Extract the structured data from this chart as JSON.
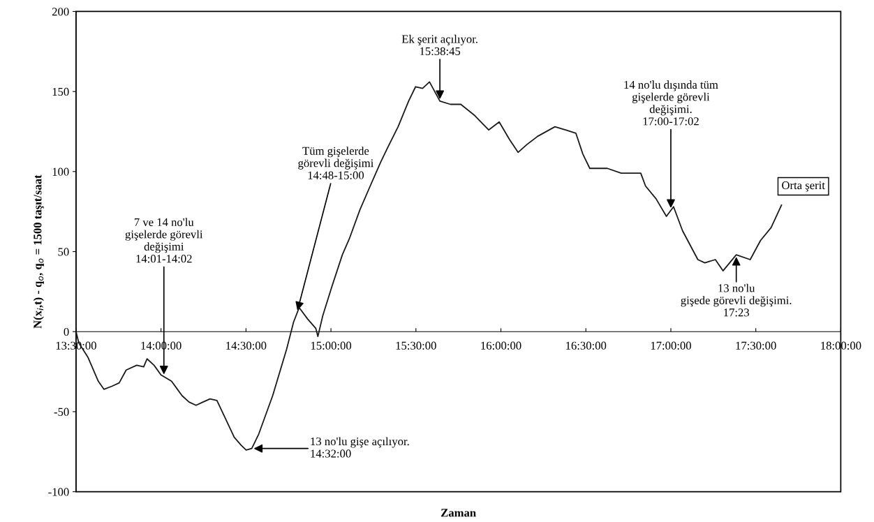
{
  "chart_data": {
    "type": "line",
    "xlabel": "Zaman",
    "ylabel": "N(x$_{i}$,t) - q$_{o}$, q$_{o}$ = 1500 taşıt/saat",
    "xlim": [
      13.5,
      18
    ],
    "ylim": [
      -100,
      200
    ],
    "xticks": [
      {
        "value": 13.5,
        "label": "13:30:00"
      },
      {
        "value": 14,
        "label": "14:00:00"
      },
      {
        "value": 14.5,
        "label": "14:30:00"
      },
      {
        "value": 15,
        "label": "15:00:00"
      },
      {
        "value": 15.5,
        "label": "15:30:00"
      },
      {
        "value": 16,
        "label": "16:00:00"
      },
      {
        "value": 16.5,
        "label": "16:30:00"
      },
      {
        "value": 17,
        "label": "17:00:00"
      },
      {
        "value": 17.5,
        "label": "17:30:00"
      },
      {
        "value": 18,
        "label": "18:00:00"
      }
    ],
    "yticks": [
      -100,
      -50,
      0,
      50,
      100,
      150,
      200
    ],
    "grid": false,
    "legend": false,
    "series": [
      {
        "name": "Orta şerit",
        "color": "#1a1a1a",
        "x": [
          13.5,
          13.516,
          13.57,
          13.631,
          13.664,
          13.713,
          13.754,
          13.795,
          13.857,
          13.898,
          13.918,
          13.959,
          14.0,
          14.062,
          14.124,
          14.165,
          14.206,
          14.247,
          14.288,
          14.329,
          14.378,
          14.431,
          14.472,
          14.501,
          14.534,
          14.575,
          14.657,
          14.739,
          14.78,
          14.813,
          14.862,
          14.911,
          14.923,
          14.952,
          15.005,
          15.067,
          15.108,
          15.17,
          15.231,
          15.293,
          15.334,
          15.395,
          15.457,
          15.498,
          15.539,
          15.58,
          15.641,
          15.703,
          15.764,
          15.846,
          15.928,
          15.99,
          16.051,
          16.101,
          16.154,
          16.216,
          16.318,
          16.38,
          16.441,
          16.482,
          16.523,
          16.626,
          16.708,
          16.823,
          16.851,
          16.913,
          16.974,
          17.016,
          17.069,
          17.159,
          17.2,
          17.262,
          17.307,
          17.385,
          17.467,
          17.528,
          17.59,
          17.651
        ],
        "values": [
          0,
          -7,
          -16,
          -31,
          -36,
          -34,
          -32,
          -24,
          -21,
          -22,
          -17,
          -21,
          -27,
          -31,
          -40,
          -44,
          -46,
          -44,
          -42,
          -43,
          -54,
          -66,
          -71,
          -74,
          -73,
          -64,
          -40,
          -11,
          6,
          15,
          8,
          2,
          -3,
          10,
          28,
          48,
          58,
          76,
          91,
          106,
          115,
          128,
          144,
          153,
          152,
          156,
          144,
          142,
          142,
          135,
          126,
          131,
          120,
          112,
          117,
          122,
          128,
          126,
          124,
          111,
          102,
          102,
          99,
          99,
          91,
          83,
          72,
          78,
          63,
          45,
          43,
          45,
          38,
          48,
          45,
          57,
          65,
          79
        ]
      }
    ],
    "annotations": [
      {
        "text": "7 ve 14 no'lu\ngişelerde görevli\ndeğişimi\n14:01-14:02",
        "x": 14.017,
        "y": -28
      },
      {
        "text": "Tüm gişelerde\ngörevli değişimi\n14:48-15:00",
        "x": 14.8,
        "y": 12
      },
      {
        "text": "13 no'lu gişe açılıyor.\n14:32:00",
        "x": 14.534,
        "y": -73
      },
      {
        "text": "Ek şerit açılıyor.\n15:38:45",
        "x": 15.641,
        "y": 144
      },
      {
        "text": "14 no'lu dışında tüm\ngişelerde görevli\ndeğişimi.\n17:00-17:02",
        "x": 17.0,
        "y": 76
      },
      {
        "text": "13 no'lu\ngişede görevli değişimi.\n17:23",
        "x": 17.385,
        "y": 48
      }
    ]
  }
}
